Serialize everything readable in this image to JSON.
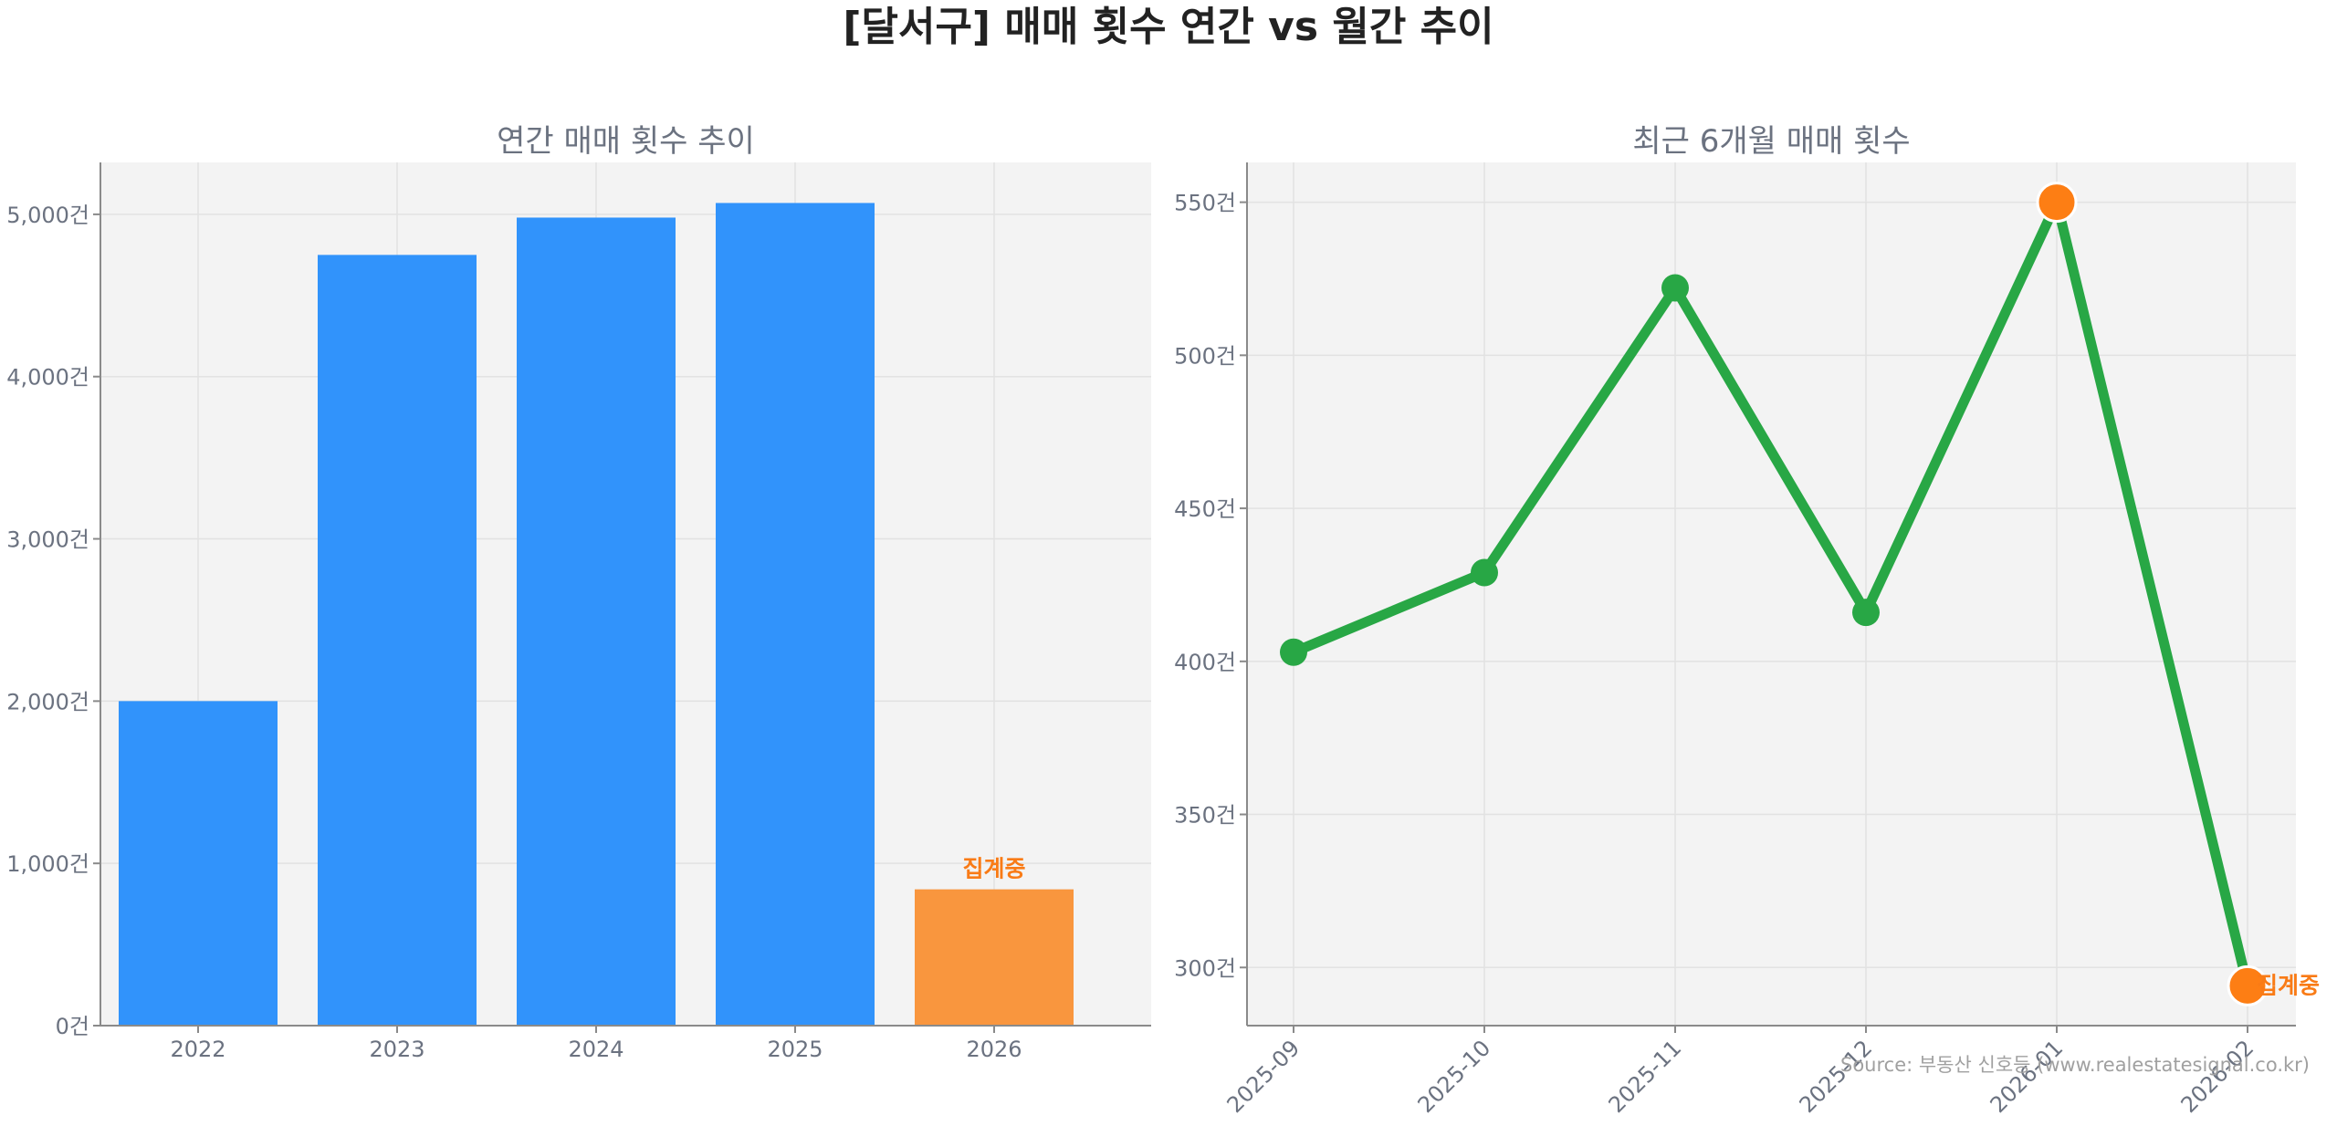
{
  "title": "[달서구] 매매 횟수 연간 vs 월간 추이",
  "source": "Source: 부동산 신호등 (www.realestatesignal.co.kr)",
  "colors": {
    "bar": "#3193fb",
    "bar_highlight": "#f9963e",
    "line": "#28a745",
    "point_highlight": "#fd7e14",
    "label_highlight": "#f97b16",
    "panel_bg": "#f3f3f3"
  },
  "chart_data": [
    {
      "type": "bar",
      "title": "연간 매매 횟수 추이",
      "categories": [
        "2022",
        "2023",
        "2024",
        "2025",
        "2026"
      ],
      "values": [
        2000,
        4750,
        4980,
        5070,
        840
      ],
      "highlight_index": 4,
      "annotation": "집계중",
      "ylim": [
        0,
        5320
      ],
      "yticks": [
        0,
        1000,
        2000,
        3000,
        4000,
        5000
      ],
      "ytick_labels": [
        "0건",
        "1,000건",
        "2,000건",
        "3,000건",
        "4,000건",
        "5,000건"
      ],
      "grid": true
    },
    {
      "type": "line",
      "title": "최근 6개월 매매 횟수",
      "x": [
        "2025-09",
        "2025-10",
        "2025-11",
        "2025-12",
        "2026-01",
        "2026-02"
      ],
      "values": [
        403,
        429,
        522,
        416,
        550,
        294
      ],
      "highlight_indices": [
        4,
        5
      ],
      "annotation": "집계중",
      "ylim": [
        281,
        563
      ],
      "yticks": [
        300,
        350,
        400,
        450,
        500,
        550
      ],
      "ytick_labels": [
        "300건",
        "350건",
        "400건",
        "450건",
        "500건",
        "550건"
      ],
      "grid": true
    }
  ]
}
